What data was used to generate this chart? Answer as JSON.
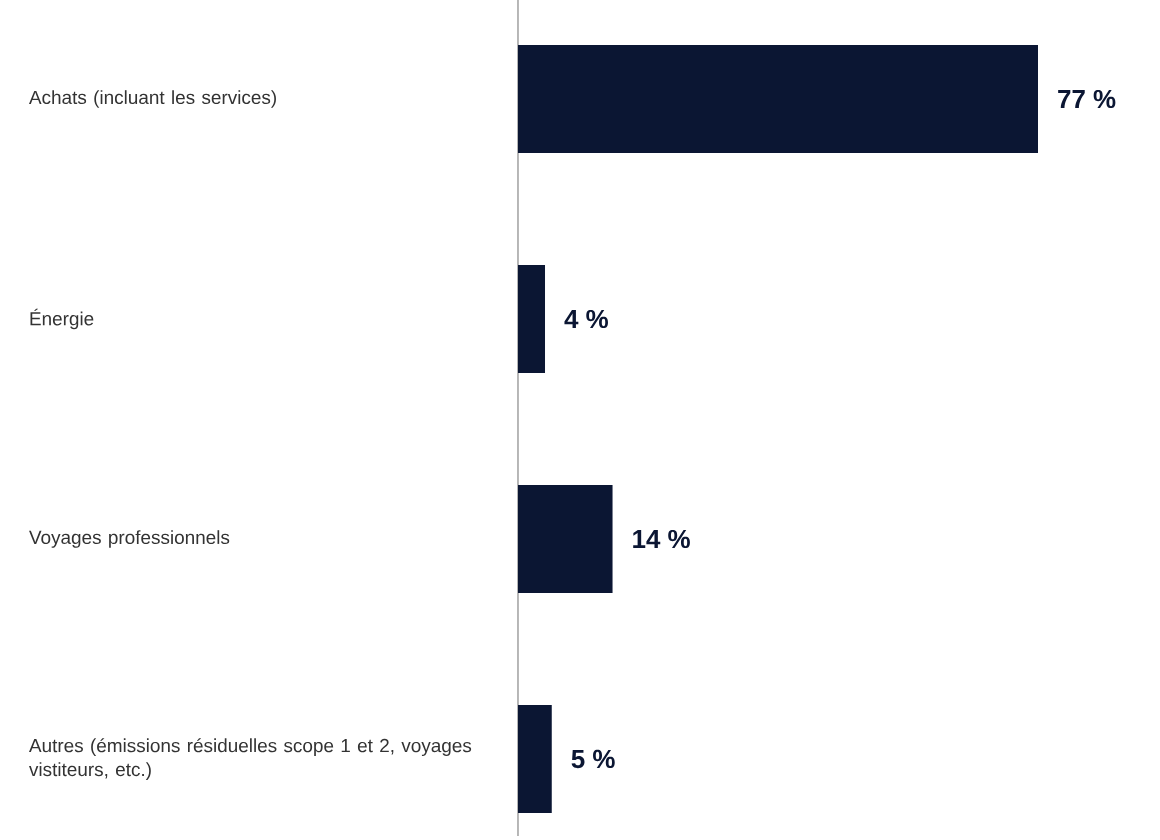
{
  "chart_data": {
    "type": "bar",
    "orientation": "horizontal",
    "categories": [
      "Achats (incluant les services)",
      "Énergie",
      "Voyages professionnels",
      "Autres (émissions résiduelles scope 1 et 2,  voyages vistiteurs, etc.)"
    ],
    "values": [
      77,
      4,
      14,
      5
    ],
    "color": "#0b1633",
    "value_labels": [
      "77 %",
      "4 %",
      "14 %",
      "5 %"
    ]
  }
}
